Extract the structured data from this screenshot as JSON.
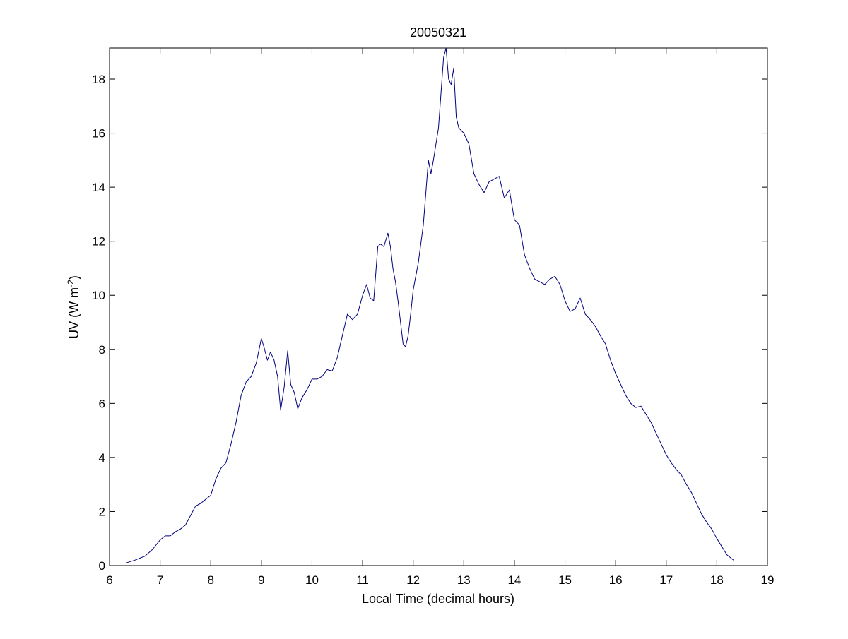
{
  "chart_data": {
    "type": "line",
    "title": "20050321",
    "xlabel": "Local Time (decimal hours)",
    "ylabel": {
      "main": "UV (W m",
      "superscript": "-2",
      "close": ")"
    },
    "xlim": [
      6,
      19
    ],
    "ylim": [
      0,
      19.15
    ],
    "xticks": [
      6,
      7,
      8,
      9,
      10,
      11,
      12,
      13,
      14,
      15,
      16,
      17,
      18,
      19
    ],
    "yticks": [
      0,
      2,
      4,
      6,
      8,
      10,
      12,
      14,
      16,
      18
    ],
    "grid": false,
    "legend": "none",
    "series": [
      {
        "color": "#00007f",
        "x": [
          6.33,
          6.5,
          6.7,
          6.85,
          7.0,
          7.1,
          7.2,
          7.3,
          7.4,
          7.5,
          7.6,
          7.7,
          7.8,
          7.9,
          8.0,
          8.1,
          8.2,
          8.3,
          8.4,
          8.5,
          8.6,
          8.7,
          8.8,
          8.9,
          9.0,
          9.05,
          9.12,
          9.18,
          9.25,
          9.32,
          9.38,
          9.45,
          9.52,
          9.58,
          9.65,
          9.72,
          9.8,
          9.9,
          10.0,
          10.1,
          10.2,
          10.3,
          10.4,
          10.5,
          10.6,
          10.7,
          10.8,
          10.9,
          11.0,
          11.08,
          11.15,
          11.22,
          11.3,
          11.35,
          11.42,
          11.5,
          11.55,
          11.6,
          11.65,
          11.7,
          11.75,
          11.8,
          11.85,
          11.9,
          11.95,
          12.0,
          12.1,
          12.2,
          12.3,
          12.35,
          12.4,
          12.5,
          12.55,
          12.6,
          12.65,
          12.7,
          12.75,
          12.8,
          12.85,
          12.9,
          13.0,
          13.1,
          13.2,
          13.3,
          13.4,
          13.5,
          13.6,
          13.7,
          13.8,
          13.9,
          14.0,
          14.1,
          14.2,
          14.3,
          14.4,
          14.5,
          14.6,
          14.7,
          14.8,
          14.9,
          15.0,
          15.1,
          15.2,
          15.3,
          15.4,
          15.5,
          15.6,
          15.7,
          15.8,
          15.9,
          16.0,
          16.1,
          16.2,
          16.3,
          16.4,
          16.5,
          16.6,
          16.7,
          16.8,
          16.9,
          17.0,
          17.1,
          17.2,
          17.3,
          17.4,
          17.5,
          17.6,
          17.7,
          17.8,
          17.9,
          18.0,
          18.1,
          18.2,
          18.33
        ],
        "y": [
          0.1,
          0.2,
          0.35,
          0.6,
          0.95,
          1.1,
          1.1,
          1.25,
          1.35,
          1.5,
          1.85,
          2.2,
          2.3,
          2.45,
          2.6,
          3.2,
          3.6,
          3.8,
          4.5,
          5.3,
          6.3,
          6.8,
          7.0,
          7.5,
          8.4,
          8.1,
          7.6,
          7.9,
          7.6,
          7.0,
          5.75,
          6.6,
          7.95,
          6.7,
          6.4,
          5.8,
          6.2,
          6.5,
          6.9,
          6.9,
          7.0,
          7.25,
          7.2,
          7.7,
          8.5,
          9.3,
          9.1,
          9.3,
          10.0,
          10.4,
          9.9,
          9.8,
          11.8,
          11.9,
          11.8,
          12.3,
          11.8,
          11.0,
          10.5,
          9.8,
          9.0,
          8.2,
          8.1,
          8.5,
          9.3,
          10.2,
          11.2,
          12.6,
          15.0,
          14.5,
          15.0,
          16.2,
          17.5,
          18.8,
          19.15,
          18.0,
          17.8,
          18.4,
          16.6,
          16.2,
          16.0,
          15.6,
          14.5,
          14.1,
          13.8,
          14.2,
          14.3,
          14.4,
          13.6,
          13.9,
          12.8,
          12.6,
          11.5,
          11.0,
          10.6,
          10.5,
          10.4,
          10.6,
          10.7,
          10.4,
          9.8,
          9.4,
          9.5,
          9.9,
          9.3,
          9.1,
          8.85,
          8.5,
          8.2,
          7.6,
          7.1,
          6.7,
          6.3,
          6.0,
          5.85,
          5.9,
          5.6,
          5.3,
          4.9,
          4.5,
          4.1,
          3.8,
          3.55,
          3.35,
          3.0,
          2.7,
          2.3,
          1.9,
          1.6,
          1.35,
          1.0,
          0.7,
          0.4,
          0.2
        ]
      }
    ]
  }
}
